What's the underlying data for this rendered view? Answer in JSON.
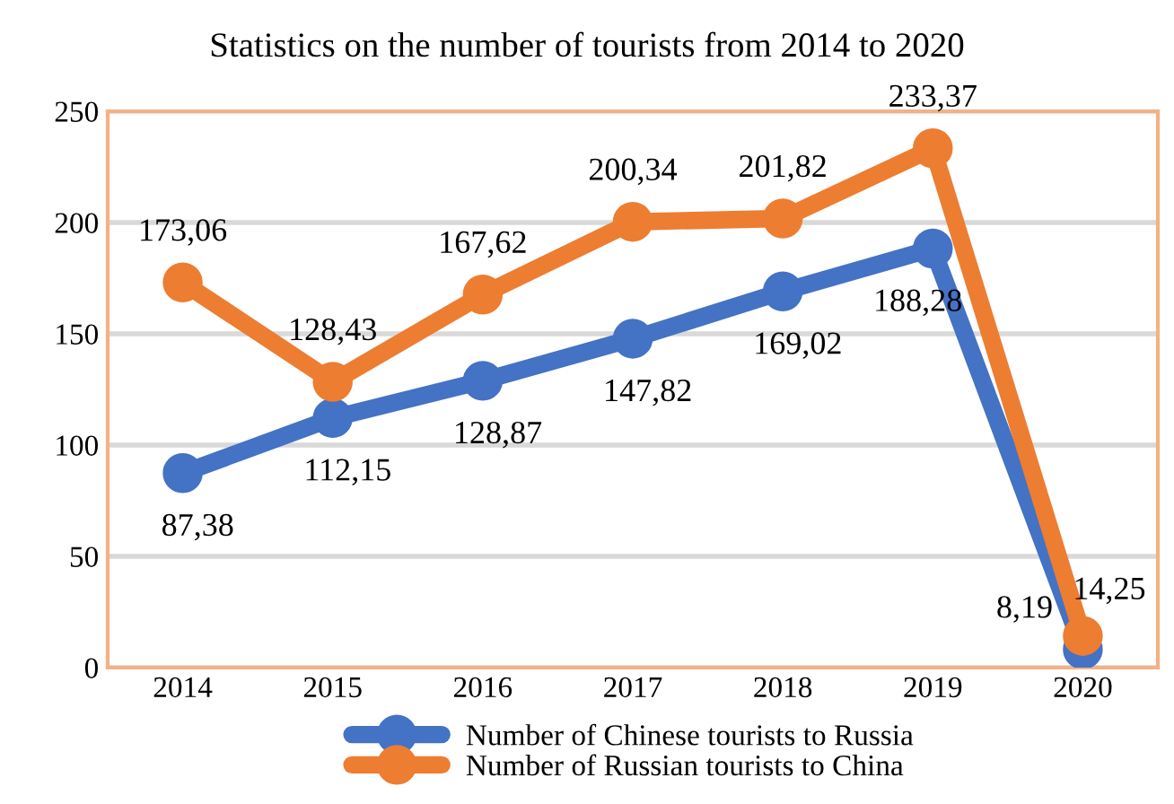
{
  "chart_data": {
    "type": "line",
    "title": "Statistics on the number of tourists from 2014 to 2020",
    "categories": [
      "2014",
      "2015",
      "2016",
      "2017",
      "2018",
      "2019",
      "2020"
    ],
    "series": [
      {
        "name": "Number of Chinese tourists to Russia",
        "color": "#4472c4",
        "values": [
          87.38,
          112.15,
          128.87,
          147.82,
          169.02,
          188.28,
          8.19
        ],
        "value_labels": [
          "87,38",
          "112,15",
          "128,87",
          "147,82",
          "169,02",
          "188,28",
          "8,19"
        ]
      },
      {
        "name": "Number of Russian tourists to China",
        "color": "#ed7d31",
        "values": [
          173.06,
          128.43,
          167.62,
          200.34,
          201.82,
          233.37,
          14.25
        ],
        "value_labels": [
          "173,06",
          "128,43",
          "167,62",
          "200,34",
          "201,82",
          "233,37",
          "14,25"
        ]
      }
    ],
    "ylim": [
      0,
      250
    ],
    "yticks": [
      0,
      50,
      100,
      150,
      200,
      250
    ],
    "grid": "y",
    "legend": "bottom",
    "marker": "circle",
    "line_style": "solid"
  }
}
